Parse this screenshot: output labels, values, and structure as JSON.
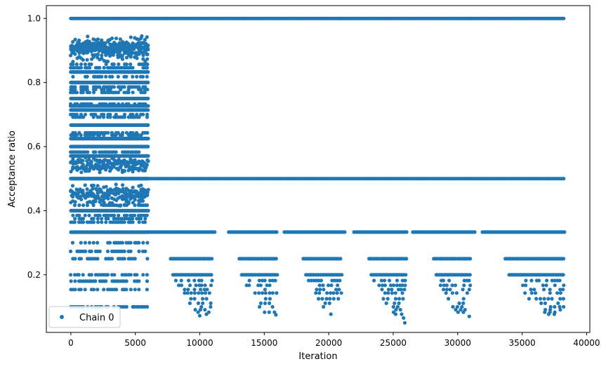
{
  "chart_data": {
    "type": "scatter",
    "title": "",
    "xlabel": "Iteration",
    "ylabel": "Acceptance ratio",
    "xlim": [
      -1900,
      40250
    ],
    "ylim": [
      0.02,
      1.04
    ],
    "xticks": [
      0,
      5000,
      10000,
      15000,
      20000,
      25000,
      30000,
      35000,
      40000
    ],
    "xtick_labels": [
      "0",
      "5000",
      "10000",
      "15000",
      "20000",
      "25000",
      "30000",
      "35000",
      "40000"
    ],
    "yticks": [
      0.2,
      0.4,
      0.6,
      0.8,
      1.0
    ],
    "ytick_labels": [
      "0.2",
      "0.4",
      "0.6",
      "0.8",
      "1.0"
    ],
    "grid": false,
    "legend_placement": "lower-left",
    "series": [
      {
        "name": "Chain 0",
        "color": "#1f77b4",
        "marker": "circle",
        "x_range": [
          0,
          38300
        ],
        "levels_constant": [
          1.0,
          0.5
        ],
        "levels_early_phase": [
          0.93,
          0.92,
          0.91,
          0.9,
          0.89,
          0.88,
          0.857,
          0.846,
          0.833,
          0.818,
          0.8,
          0.786,
          0.778,
          0.769,
          0.75,
          0.733,
          0.727,
          0.714,
          0.7,
          0.692,
          0.667,
          0.643,
          0.636,
          0.625,
          0.6,
          0.583,
          0.571,
          0.556,
          0.545,
          0.538,
          0.533,
          0.5,
          0.467,
          0.455,
          0.444,
          0.4375,
          0.429,
          0.417,
          0.4,
          0.385,
          0.375,
          0.364,
          0.333,
          0.3,
          0.273,
          0.25,
          0.2,
          0.18,
          0.154,
          0.1
        ],
        "early_phase_end": 6000,
        "level_one_third_gaps": [
          [
            11200,
            12200
          ],
          [
            16000,
            16500
          ],
          [
            21300,
            21900
          ],
          [
            26100,
            26400
          ],
          [
            31400,
            31900
          ]
        ],
        "tail_levels": [
          0.25,
          0.2,
          0.182,
          0.167,
          0.154,
          0.143,
          0.125,
          0.111,
          0.1,
          0.091,
          0.083,
          0.077
        ],
        "tail_clusters": [
          {
            "start": 7000,
            "end": 11000
          },
          {
            "start": 12400,
            "end": 16000
          },
          {
            "start": 17400,
            "end": 21000
          },
          {
            "start": 22500,
            "end": 26000
          },
          {
            "start": 27500,
            "end": 31000
          },
          {
            "start": 32700,
            "end": 38300
          }
        ],
        "outliers": [
          {
            "x": 5500,
            "y": 0.945
          },
          {
            "x": 2100,
            "y": 0.935
          },
          {
            "x": 25900,
            "y": 0.05
          },
          {
            "x": 25800,
            "y": 0.065
          },
          {
            "x": 30900,
            "y": 0.07
          },
          {
            "x": 10000,
            "y": 0.072
          },
          {
            "x": 15900,
            "y": 0.075
          }
        ]
      }
    ]
  }
}
